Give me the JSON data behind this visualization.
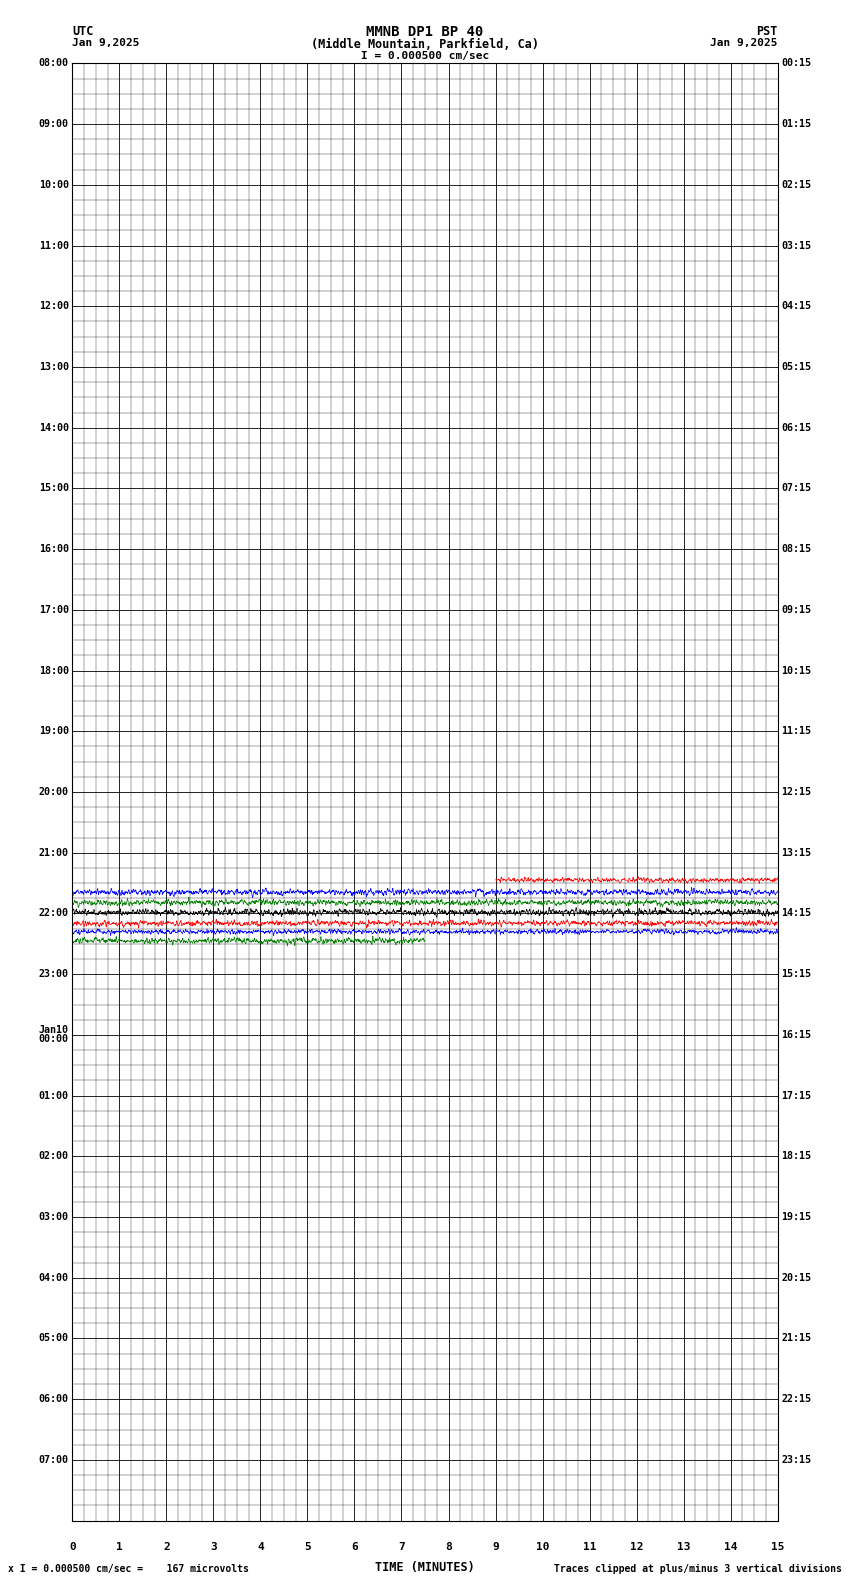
{
  "title_line1": "MMNB DP1 BP 40",
  "title_line2": "(Middle Mountain, Parkfield, Ca)",
  "scale_text": "I = 0.000500 cm/sec",
  "utc_label": "UTC",
  "utc_date": "Jan 9,2025",
  "pst_label": "PST",
  "pst_date": "Jan 9,2025",
  "footer_left": "x I = 0.000500 cm/sec =    167 microvolts",
  "footer_right": "Traces clipped at plus/minus 3 vertical divisions",
  "xlabel": "TIME (MINUTES)",
  "xlim": [
    0,
    15
  ],
  "xticks": [
    0,
    1,
    2,
    3,
    4,
    5,
    6,
    7,
    8,
    9,
    10,
    11,
    12,
    13,
    14,
    15
  ],
  "left_labels": [
    "08:00",
    "09:00",
    "10:00",
    "11:00",
    "12:00",
    "13:00",
    "14:00",
    "15:00",
    "16:00",
    "17:00",
    "18:00",
    "19:00",
    "20:00",
    "21:00",
    "22:00",
    "23:00",
    "Jan10\n00:00",
    "01:00",
    "02:00",
    "03:00",
    "04:00",
    "05:00",
    "06:00",
    "07:00"
  ],
  "right_labels": [
    "00:15",
    "01:15",
    "02:15",
    "03:15",
    "04:15",
    "05:15",
    "06:15",
    "07:15",
    "08:15",
    "09:15",
    "10:15",
    "11:15",
    "12:15",
    "13:15",
    "14:15",
    "15:15",
    "16:15",
    "17:15",
    "18:15",
    "19:15",
    "20:15",
    "21:15",
    "22:15",
    "23:15"
  ],
  "n_rows": 24,
  "bg_color": "#ffffff",
  "trace_colors_upper": [
    "#ff0000",
    "#0000ff",
    "#008000"
  ],
  "trace_colors_lower": [
    "#000000",
    "#ff0000",
    "#0000ff",
    "#008000"
  ],
  "noise_seed": 42
}
